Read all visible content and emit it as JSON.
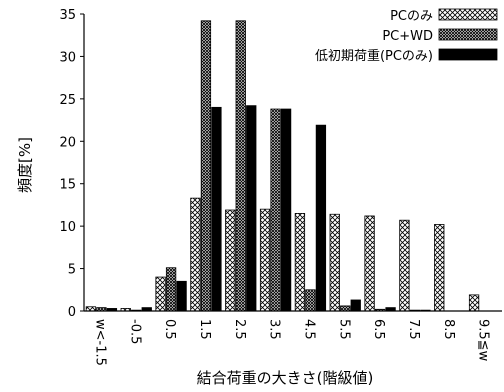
{
  "chart_data": {
    "type": "bar",
    "ylabel": "頻度[%]",
    "xlabel": "結合荷重の大きさ(階級値)",
    "ylim": [
      0,
      35
    ],
    "yticks": [
      0,
      5,
      10,
      15,
      20,
      25,
      30,
      35
    ],
    "categories": [
      "w<-1.5",
      "-0.5",
      "0.5",
      "1.5",
      "2.5",
      "3.5",
      "4.5",
      "5.5",
      "6.5",
      "7.5",
      "8.5",
      "9.5≦w"
    ],
    "series": [
      {
        "name": "PCのみ",
        "pattern": "crosshatch-light",
        "values": [
          0.5,
          0.3,
          4.0,
          13.3,
          11.9,
          12.0,
          11.5,
          11.4,
          11.2,
          10.7,
          10.2,
          1.9
        ]
      },
      {
        "name": "PC+WD",
        "pattern": "crosshatch-dense",
        "values": [
          0.4,
          0.1,
          5.1,
          34.2,
          34.2,
          23.8,
          2.5,
          0.6,
          0.2,
          0.1,
          0.0,
          0.0
        ]
      },
      {
        "name": "低初期荷重(PCのみ)",
        "pattern": "solid-black",
        "values": [
          0.3,
          0.4,
          3.5,
          24.0,
          24.2,
          23.8,
          21.9,
          1.3,
          0.4,
          0.1,
          0.0,
          0.0
        ]
      }
    ],
    "grid": false,
    "legend_position": "top-right",
    "colors": {
      "axis": "#000000",
      "solid": "#000000",
      "hatch_bg": "#ffffff"
    }
  }
}
